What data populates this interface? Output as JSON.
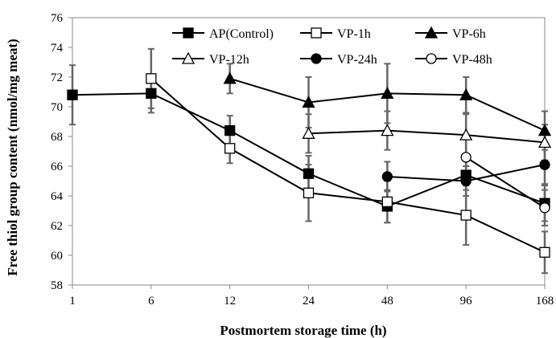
{
  "chart_data": {
    "type": "line",
    "title": "",
    "xlabel": "Postmortem storage time (h)",
    "ylabel": "Free thiol group content (nmol/mg meat)",
    "categories": [
      "1",
      "6",
      "12",
      "24",
      "48",
      "96",
      "168"
    ],
    "ylim": [
      58,
      76
    ],
    "yticks": [
      58,
      60,
      62,
      64,
      66,
      68,
      70,
      72,
      74,
      76
    ],
    "grid": false,
    "legend_position": "top",
    "series": [
      {
        "name": "AP(Control)",
        "marker": "square-filled",
        "values": [
          70.8,
          70.9,
          68.4,
          65.5,
          63.3,
          65.4,
          63.5
        ],
        "errors": [
          2.0,
          1.3,
          1.0,
          1.2,
          1.1,
          1.0,
          1.2
        ]
      },
      {
        "name": "VP-1h",
        "marker": "square-open",
        "values": [
          null,
          71.9,
          67.2,
          64.2,
          63.6,
          62.7,
          60.2
        ],
        "errors": [
          null,
          2.0,
          1.0,
          1.9,
          1.4,
          2.0,
          1.4
        ]
      },
      {
        "name": "VP-6h",
        "marker": "triangle-filled",
        "values": [
          null,
          null,
          71.9,
          70.3,
          70.9,
          70.8,
          68.4
        ],
        "errors": [
          null,
          null,
          1.0,
          1.7,
          2.0,
          1.2,
          1.3
        ]
      },
      {
        "name": "VP-12h",
        "marker": "triangle-open",
        "values": [
          null,
          null,
          null,
          68.2,
          68.4,
          68.1,
          67.6
        ],
        "errors": [
          null,
          null,
          null,
          1.3,
          1.3,
          1.4,
          1.2
        ]
      },
      {
        "name": "VP-24h",
        "marker": "circle-filled",
        "values": [
          null,
          null,
          null,
          null,
          65.3,
          65.0,
          66.1
        ],
        "errors": [
          null,
          null,
          null,
          null,
          1.0,
          1.0,
          1.3
        ]
      },
      {
        "name": "VP-48h",
        "marker": "circle-open",
        "values": [
          null,
          null,
          null,
          null,
          null,
          66.6,
          63.2
        ],
        "errors": [
          null,
          null,
          null,
          null,
          null,
          1.2,
          1.2
        ]
      }
    ]
  }
}
